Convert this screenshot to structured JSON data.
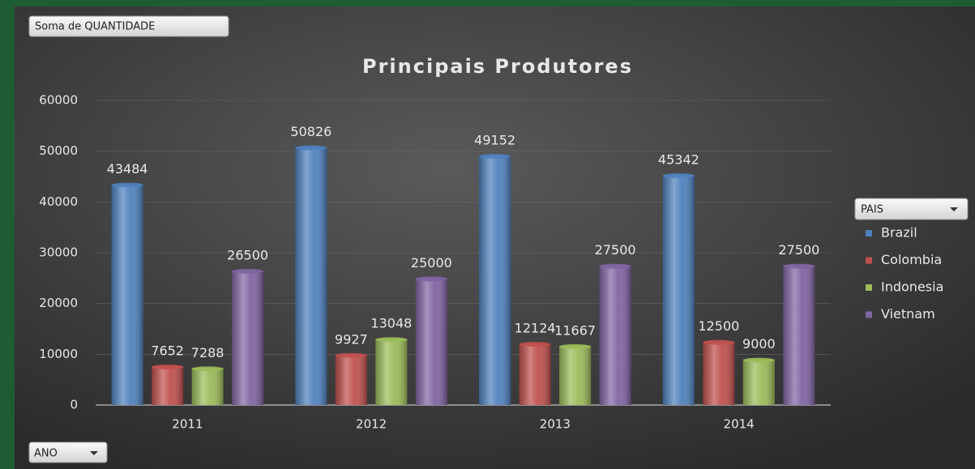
{
  "chart_data": {
    "type": "bar",
    "title": "Principais Produtores",
    "value_field": "Soma de QUANTIDADE",
    "legend_title": "PAIS",
    "axis_field": "ANO",
    "categories": [
      "2011",
      "2012",
      "2013",
      "2014"
    ],
    "series": [
      {
        "name": "Brazil",
        "color": "#4f81bd",
        "values": [
          43484,
          50826,
          49152,
          45342
        ]
      },
      {
        "name": "Colombia",
        "color": "#c0504d",
        "values": [
          7652,
          9927,
          12124,
          12500
        ]
      },
      {
        "name": "Indonesia",
        "color": "#9bbb59",
        "values": [
          7288,
          13048,
          11667,
          9000
        ]
      },
      {
        "name": "Vietnam",
        "color": "#8064a2",
        "values": [
          26500,
          25000,
          27500,
          27500
        ]
      }
    ],
    "ylim": [
      0,
      60000
    ],
    "yticks": [
      0,
      10000,
      20000,
      30000,
      40000,
      50000,
      60000
    ],
    "grid": true,
    "legend": "right"
  }
}
